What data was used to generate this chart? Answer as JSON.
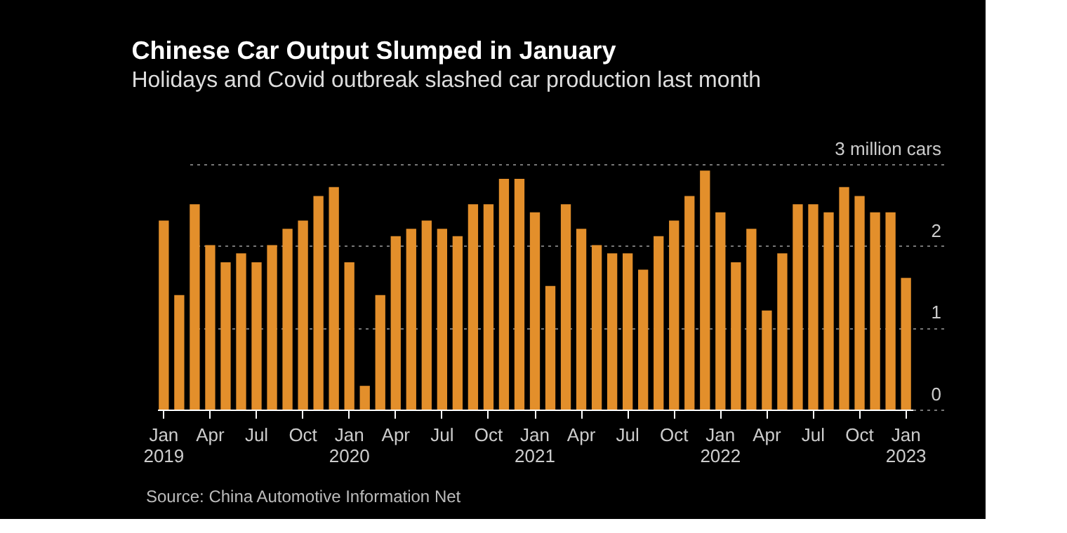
{
  "chart_data": {
    "type": "bar",
    "title": "Chinese Car Output Slumped in January",
    "subtitle": "Holidays and Covid outbreak slashed car production last month",
    "categories": [
      "Jan 2019",
      null,
      null,
      "Apr",
      null,
      null,
      "Jul",
      null,
      null,
      "Oct",
      null,
      null,
      "Jan 2020",
      null,
      null,
      "Apr",
      null,
      null,
      "Jul",
      null,
      null,
      "Oct",
      null,
      null,
      "Jan 2021",
      null,
      null,
      "Apr",
      null,
      null,
      "Jul",
      null,
      null,
      "Oct",
      null,
      null,
      "Jan 2022",
      null,
      null,
      "Apr",
      null,
      null,
      "Jul",
      null,
      null,
      "Oct",
      null,
      null,
      "Jan 2023"
    ],
    "values": [
      2.31,
      1.4,
      2.51,
      2.01,
      1.8,
      1.91,
      1.8,
      2.01,
      2.21,
      2.31,
      2.61,
      2.72,
      1.8,
      0.29,
      1.4,
      2.12,
      2.21,
      2.31,
      2.21,
      2.12,
      2.51,
      2.51,
      2.82,
      2.82,
      2.41,
      1.51,
      2.51,
      2.21,
      2.01,
      1.91,
      1.91,
      1.71,
      2.12,
      2.31,
      2.61,
      2.92,
      2.41,
      1.8,
      2.21,
      1.21,
      1.91,
      2.51,
      2.51,
      2.41,
      2.72,
      2.61,
      2.41,
      2.41,
      1.61
    ],
    "color": "#e38f2b",
    "ylim": [
      0,
      3
    ],
    "yticks": [
      0,
      1,
      2,
      {
        "value": 3,
        "label": "3 million cars"
      }
    ],
    "grid": "y",
    "annotations": [
      "Source: China Automotive Information Net"
    ]
  }
}
